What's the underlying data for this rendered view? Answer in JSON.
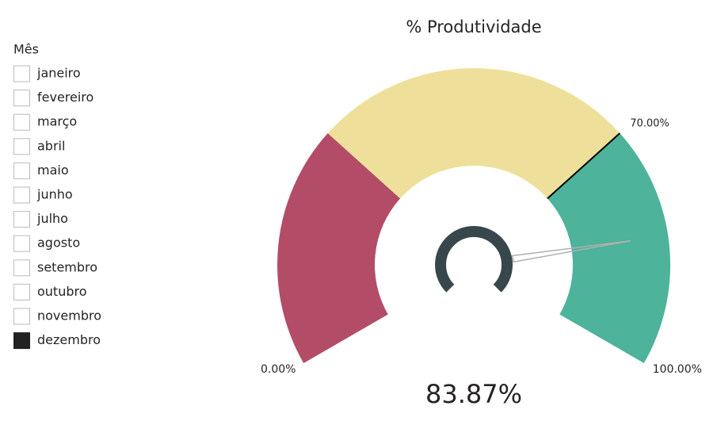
{
  "chart_data": {
    "type": "gauge",
    "title": "% Produtividade",
    "ylim": [
      0,
      100
    ],
    "yticks": [
      {
        "value": 0,
        "label": "0.00%"
      },
      {
        "value": 100,
        "label": "100.00%"
      }
    ],
    "target": {
      "value": 70,
      "label": "70.00%"
    },
    "values": [
      83.87
    ],
    "value_labels": [
      "83.87%"
    ],
    "bands": [
      {
        "to": 30,
        "color": "#b34c67"
      },
      {
        "to": 70,
        "color": "#eee09a"
      },
      {
        "to": 100,
        "color": "#4db39b"
      }
    ],
    "needle_color": "#b0b0b0",
    "hub_color": "#37474b"
  },
  "slicer": {
    "title": "Mês",
    "items": [
      {
        "label": "janeiro",
        "selected": false
      },
      {
        "label": "fevereiro",
        "selected": false
      },
      {
        "label": "março",
        "selected": false
      },
      {
        "label": "abril",
        "selected": false
      },
      {
        "label": "maio",
        "selected": false
      },
      {
        "label": "junho",
        "selected": false
      },
      {
        "label": "julho",
        "selected": false
      },
      {
        "label": "agosto",
        "selected": false
      },
      {
        "label": "setembro",
        "selected": false
      },
      {
        "label": "outubro",
        "selected": false
      },
      {
        "label": "novembro",
        "selected": false
      },
      {
        "label": "dezembro",
        "selected": true
      }
    ]
  }
}
